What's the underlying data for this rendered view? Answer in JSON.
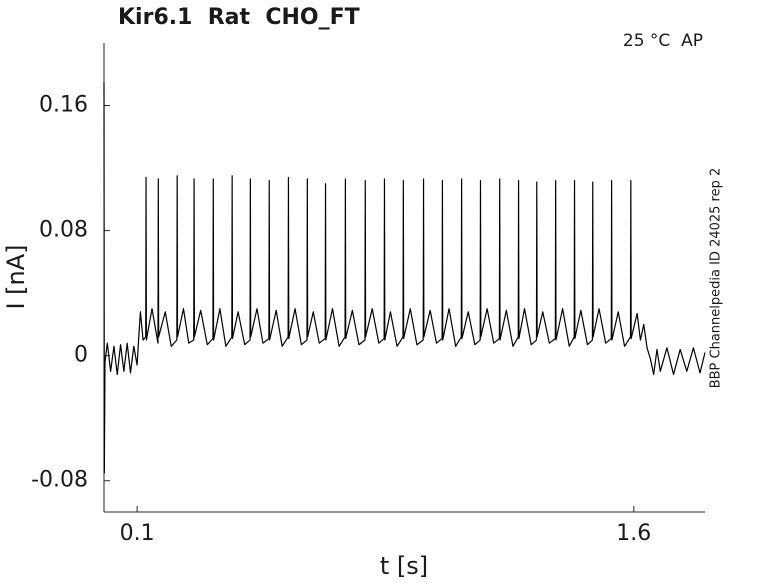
{
  "chart_data": {
    "type": "line",
    "title": "Kir6.1  Rat  CHO_FT",
    "annotation": "25 °C  AP",
    "side_note": "BBP Channelpedia ID 24025 rep 2",
    "xlabel": "t [s]",
    "ylabel": "I [nA]",
    "xlim": [
      0,
      1.815
    ],
    "ylim": [
      -0.1,
      0.2
    ],
    "xticks": [
      0.1,
      1.6
    ],
    "yticks": [
      -0.08,
      0,
      0.08,
      0.16
    ],
    "grid": false,
    "x": [
      0,
      0.001,
      0.003,
      0.01,
      0.02,
      0.03,
      0.04,
      0.05,
      0.06,
      0.07,
      0.08,
      0.09,
      0.1,
      0.105,
      0.11,
      0.118,
      0.126,
      0.127,
      0.128,
      0.145,
      0.163,
      0.164,
      0.165,
      0.185,
      0.203,
      0.22,
      0.221,
      0.222,
      0.24,
      0.256,
      0.271,
      0.272,
      0.273,
      0.292,
      0.312,
      0.329,
      0.33,
      0.331,
      0.35,
      0.368,
      0.386,
      0.387,
      0.388,
      0.405,
      0.425,
      0.441,
      0.442,
      0.443,
      0.462,
      0.48,
      0.498,
      0.499,
      0.5,
      0.52,
      0.538,
      0.556,
      0.557,
      0.558,
      0.577,
      0.596,
      0.613,
      0.614,
      0.615,
      0.632,
      0.65,
      0.668,
      0.669,
      0.67,
      0.69,
      0.71,
      0.728,
      0.729,
      0.73,
      0.75,
      0.77,
      0.788,
      0.789,
      0.79,
      0.81,
      0.83,
      0.846,
      0.847,
      0.848,
      0.865,
      0.885,
      0.903,
      0.904,
      0.905,
      0.925,
      0.945,
      0.964,
      0.965,
      0.966,
      0.985,
      1.004,
      1.021,
      1.022,
      1.023,
      1.042,
      1.062,
      1.079,
      1.08,
      1.081,
      1.1,
      1.12,
      1.136,
      1.137,
      1.138,
      1.157,
      1.177,
      1.194,
      1.195,
      1.196,
      1.215,
      1.235,
      1.251,
      1.252,
      1.253,
      1.27,
      1.29,
      1.306,
      1.307,
      1.308,
      1.325,
      1.345,
      1.363,
      1.364,
      1.365,
      1.385,
      1.405,
      1.42,
      1.421,
      1.422,
      1.44,
      1.46,
      1.475,
      1.476,
      1.477,
      1.495,
      1.515,
      1.532,
      1.533,
      1.534,
      1.553,
      1.572,
      1.59,
      1.591,
      1.592,
      1.61,
      1.62,
      1.63,
      1.64,
      1.65,
      1.66,
      1.67,
      1.68,
      1.7,
      1.72,
      1.74,
      1.76,
      1.78,
      1.8,
      1.815
    ],
    "series": [
      {
        "color": "#000000",
        "values": [
          0.175,
          -0.075,
          -0.004,
          0.008,
          -0.01,
          0.006,
          -0.012,
          0.007,
          -0.01,
          0.008,
          -0.011,
          0.006,
          -0.006,
          0.012,
          0.028,
          0.01,
          0.012,
          0.114,
          0.01,
          0.03,
          0.008,
          0.113,
          0.012,
          0.028,
          0.006,
          0.01,
          0.115,
          0.012,
          0.03,
          0.008,
          0.01,
          0.113,
          0.012,
          0.029,
          0.007,
          0.011,
          0.113,
          0.01,
          0.03,
          0.006,
          0.012,
          0.115,
          0.011,
          0.028,
          0.007,
          0.01,
          0.113,
          0.012,
          0.03,
          0.008,
          0.011,
          0.112,
          0.01,
          0.029,
          0.006,
          0.012,
          0.114,
          0.011,
          0.03,
          0.007,
          0.01,
          0.113,
          0.012,
          0.028,
          0.008,
          0.011,
          0.11,
          0.01,
          0.03,
          0.006,
          0.012,
          0.113,
          0.011,
          0.029,
          0.007,
          0.01,
          0.112,
          0.012,
          0.03,
          0.008,
          0.011,
          0.113,
          0.01,
          0.028,
          0.006,
          0.012,
          0.112,
          0.011,
          0.03,
          0.007,
          0.01,
          0.113,
          0.012,
          0.029,
          0.008,
          0.011,
          0.112,
          0.01,
          0.03,
          0.006,
          0.012,
          0.113,
          0.011,
          0.028,
          0.007,
          0.01,
          0.112,
          0.012,
          0.03,
          0.008,
          0.011,
          0.113,
          0.01,
          0.029,
          0.006,
          0.012,
          0.112,
          0.011,
          0.03,
          0.007,
          0.01,
          0.111,
          0.012,
          0.028,
          0.008,
          0.011,
          0.112,
          0.01,
          0.03,
          0.006,
          0.012,
          0.112,
          0.011,
          0.029,
          0.007,
          0.01,
          0.111,
          0.012,
          0.03,
          0.008,
          0.011,
          0.112,
          0.01,
          0.028,
          0.006,
          0.012,
          0.112,
          0.011,
          0.027,
          0.01,
          0.02,
          0.005,
          -0.002,
          -0.012,
          0.004,
          -0.01,
          0.005,
          -0.012,
          0.004,
          -0.01,
          0.005,
          -0.011,
          0.002
        ]
      }
    ]
  }
}
